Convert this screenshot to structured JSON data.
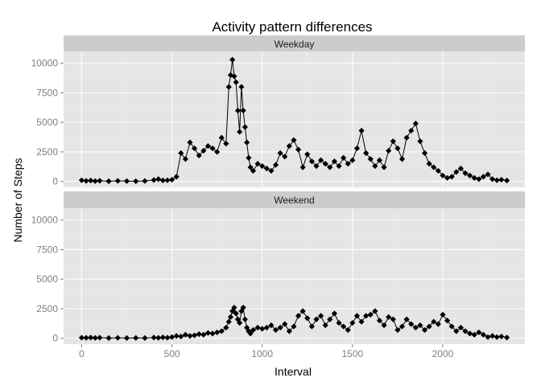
{
  "chart_data": {
    "type": "line",
    "title": "Activity pattern differences",
    "xlabel": "Interval",
    "ylabel": "Number of Steps",
    "xlim": [
      -100,
      2455
    ],
    "ylim": [
      -500,
      11000
    ],
    "xticks": [
      0,
      500,
      1000,
      1500,
      2000
    ],
    "yticks": [
      0,
      2500,
      5000,
      7500,
      10000
    ],
    "xtick_labels": [
      "0",
      "500",
      "1000",
      "1500",
      "2000"
    ],
    "ytick_labels": [
      "0",
      "2500",
      "5000",
      "7500",
      "10000"
    ],
    "grid": true,
    "markers": "diamond",
    "colors": {
      "panel": "#e5e5e5",
      "strip": "#cccccc",
      "gridMajor": "#ffffff",
      "gridMinor": "#f0f0f0",
      "series": "#000000",
      "tickLabel": "#7f7f7f"
    },
    "panels": [
      {
        "label": "Weekday",
        "x": [
          0,
          25,
          50,
          75,
          100,
          150,
          200,
          250,
          300,
          350,
          400,
          425,
          450,
          475,
          500,
          525,
          550,
          575,
          600,
          625,
          650,
          675,
          700,
          725,
          750,
          775,
          800,
          815,
          825,
          835,
          845,
          855,
          865,
          875,
          885,
          895,
          905,
          915,
          925,
          935,
          950,
          975,
          1000,
          1025,
          1050,
          1075,
          1100,
          1125,
          1150,
          1175,
          1200,
          1225,
          1250,
          1275,
          1300,
          1325,
          1350,
          1375,
          1400,
          1425,
          1450,
          1475,
          1500,
          1525,
          1550,
          1575,
          1600,
          1625,
          1650,
          1675,
          1700,
          1725,
          1750,
          1775,
          1800,
          1825,
          1850,
          1875,
          1900,
          1925,
          1950,
          1975,
          2000,
          2025,
          2050,
          2075,
          2100,
          2125,
          2150,
          2175,
          2200,
          2225,
          2250,
          2275,
          2300,
          2325,
          2355
        ],
        "y": [
          100,
          50,
          80,
          30,
          60,
          20,
          50,
          30,
          20,
          40,
          120,
          200,
          90,
          100,
          150,
          400,
          2400,
          1900,
          3300,
          2800,
          2200,
          2600,
          3000,
          2800,
          2500,
          3700,
          3200,
          8000,
          9000,
          10300,
          8900,
          8400,
          6000,
          4200,
          8000,
          6000,
          4600,
          3300,
          2000,
          1200,
          900,
          1500,
          1300,
          1100,
          900,
          1400,
          2400,
          2100,
          3000,
          3500,
          2700,
          1200,
          2300,
          1700,
          1300,
          1800,
          1500,
          1200,
          1700,
          1300,
          2000,
          1500,
          1800,
          2800,
          4300,
          2400,
          1900,
          1300,
          1800,
          1200,
          2600,
          3400,
          2800,
          1900,
          3700,
          4300,
          4900,
          3400,
          2400,
          1500,
          1200,
          900,
          500,
          300,
          400,
          800,
          1100,
          700,
          500,
          300,
          200,
          400,
          600,
          200,
          100,
          150,
          80
        ]
      },
      {
        "label": "Weekend",
        "x": [
          0,
          25,
          50,
          75,
          100,
          150,
          200,
          250,
          300,
          350,
          400,
          425,
          450,
          475,
          500,
          525,
          550,
          575,
          600,
          625,
          650,
          675,
          700,
          725,
          750,
          775,
          800,
          815,
          825,
          835,
          845,
          855,
          865,
          875,
          885,
          895,
          905,
          915,
          925,
          935,
          950,
          975,
          1000,
          1025,
          1050,
          1075,
          1100,
          1125,
          1150,
          1175,
          1200,
          1225,
          1250,
          1275,
          1300,
          1325,
          1350,
          1375,
          1400,
          1425,
          1450,
          1475,
          1500,
          1525,
          1550,
          1575,
          1600,
          1625,
          1650,
          1675,
          1700,
          1725,
          1750,
          1775,
          1800,
          1825,
          1850,
          1875,
          1900,
          1925,
          1950,
          1975,
          2000,
          2025,
          2050,
          2075,
          2100,
          2125,
          2150,
          2175,
          2200,
          2225,
          2250,
          2275,
          2300,
          2325,
          2355
        ],
        "y": [
          50,
          40,
          60,
          30,
          50,
          20,
          40,
          20,
          30,
          20,
          60,
          40,
          80,
          50,
          100,
          200,
          150,
          300,
          200,
          250,
          350,
          300,
          450,
          400,
          500,
          600,
          900,
          1400,
          1800,
          2300,
          2600,
          2100,
          1600,
          1300,
          2300,
          2600,
          1600,
          900,
          600,
          400,
          700,
          900,
          800,
          900,
          1100,
          700,
          900,
          1200,
          600,
          1000,
          1900,
          2300,
          1700,
          1000,
          1600,
          1900,
          1100,
          1600,
          2100,
          1300,
          1000,
          700,
          1300,
          1900,
          1400,
          1900,
          2000,
          2300,
          1500,
          1100,
          1800,
          1600,
          700,
          1000,
          1600,
          1200,
          900,
          1100,
          700,
          1000,
          1400,
          1200,
          2000,
          1500,
          1000,
          600,
          900,
          600,
          400,
          300,
          500,
          300,
          100,
          200,
          100,
          150,
          60
        ]
      }
    ]
  }
}
